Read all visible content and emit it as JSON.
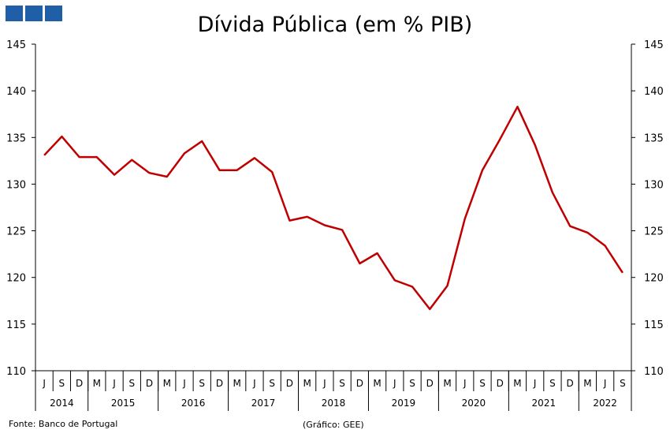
{
  "chart_data": {
    "type": "line",
    "title": "Dívida Pública (em % PIB)",
    "ylim": [
      110,
      145
    ],
    "yticks": [
      110,
      115,
      120,
      125,
      130,
      135,
      140,
      145
    ],
    "grid": false,
    "legend": "none",
    "month_labels": [
      "J",
      "S",
      "D",
      "M",
      "J",
      "S",
      "D",
      "M",
      "J",
      "S",
      "D",
      "M",
      "J",
      "S",
      "D",
      "M",
      "J",
      "S",
      "D",
      "M",
      "J",
      "S",
      "D",
      "M",
      "J",
      "S",
      "D",
      "M",
      "J",
      "S",
      "D",
      "M",
      "J",
      "S"
    ],
    "year_groups": [
      {
        "label": "2014",
        "count": 3
      },
      {
        "label": "2015",
        "count": 4
      },
      {
        "label": "2016",
        "count": 4
      },
      {
        "label": "2017",
        "count": 4
      },
      {
        "label": "2018",
        "count": 4
      },
      {
        "label": "2019",
        "count": 4
      },
      {
        "label": "2020",
        "count": 4
      },
      {
        "label": "2021",
        "count": 4
      },
      {
        "label": "2022",
        "count": 3
      }
    ],
    "series": [
      {
        "color": "#c00000",
        "values": [
          133.1,
          135.1,
          132.9,
          132.9,
          131.0,
          132.6,
          131.2,
          130.8,
          133.3,
          134.6,
          131.5,
          131.5,
          132.8,
          131.3,
          126.1,
          126.5,
          125.6,
          125.1,
          121.5,
          122.6,
          119.7,
          119.0,
          116.6,
          119.1,
          126.3,
          131.5,
          134.8,
          138.3,
          134.2,
          129.1,
          125.5,
          124.8,
          123.4,
          120.5
        ]
      }
    ]
  },
  "footer": {
    "source": "Fonte: Banco de Portugal",
    "credit": "(Gráfico: GEE)"
  }
}
